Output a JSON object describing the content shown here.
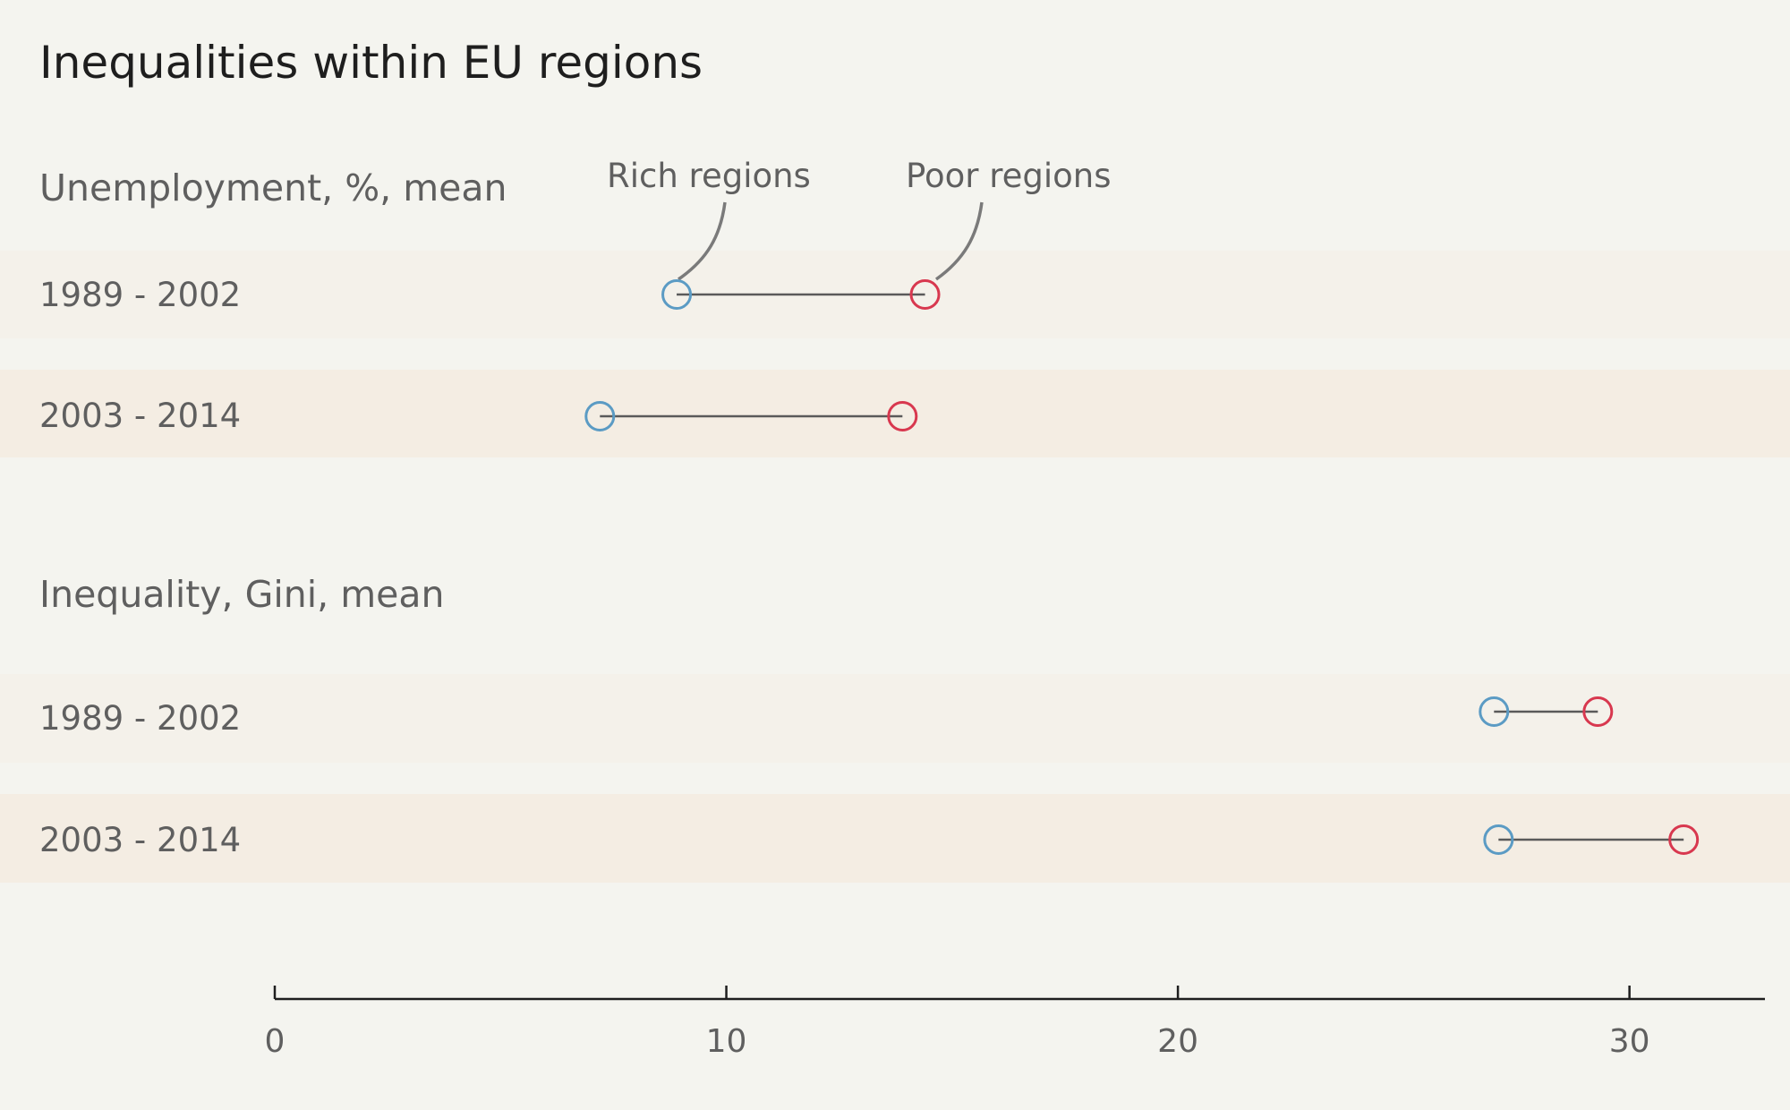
{
  "chart_data": {
    "type": "dumbbell",
    "title": "Inequalities within EU regions",
    "xlim": [
      0,
      33
    ],
    "xticks": [
      0,
      10,
      20,
      30
    ],
    "annotations": [
      "Rich regions",
      "Poor regions"
    ],
    "colors": {
      "rich": "#5b9bc4",
      "poor": "#d8384f",
      "band_light": "#f4f1ea",
      "band_dark": "#f4ede3",
      "line": "#5a5a5a"
    },
    "groups": [
      {
        "title": "Unemployment, %, mean",
        "rows": [
          {
            "label": "1989 - 2002",
            "rich": 8.9,
            "poor": 14.4
          },
          {
            "label": "2003 - 2014",
            "rich": 7.2,
            "poor": 13.9
          }
        ]
      },
      {
        "title": "Inequality, Gini,  mean",
        "rows": [
          {
            "label": "1989 - 2002",
            "rich": 27.0,
            "poor": 29.3
          },
          {
            "label": "2003 - 2014",
            "rich": 27.1,
            "poor": 31.2
          }
        ]
      }
    ]
  }
}
